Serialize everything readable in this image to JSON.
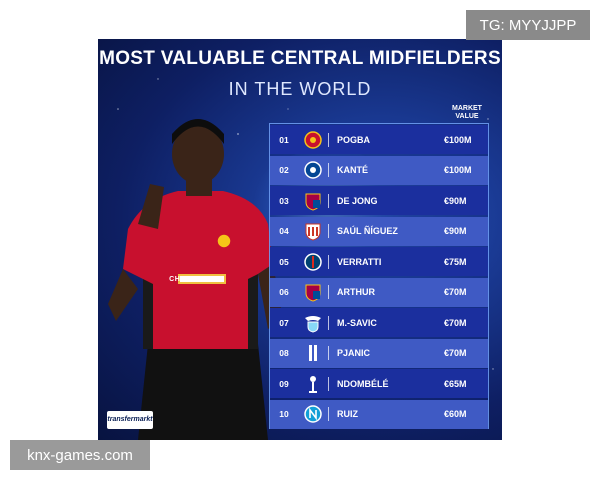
{
  "watermarks": {
    "top_right": "TG: MYYJJPP",
    "bottom_left": "knx-games.com"
  },
  "poster": {
    "title": "MOST VALUABLE CENTRAL MIDFIELDERS",
    "subtitle": "IN THE WORLD",
    "column_header": "MARKET VALUE",
    "logo_text": "transfermarkt",
    "player_shirt_text": "CHEVROLET",
    "rows": [
      {
        "rank": "01",
        "name": "POGBA",
        "value": "€100M",
        "club_icon": "manchester-united-crest-icon"
      },
      {
        "rank": "02",
        "name": "KANTÉ",
        "value": "€100M",
        "club_icon": "chelsea-crest-icon"
      },
      {
        "rank": "03",
        "name": "DE JONG",
        "value": "€90M",
        "club_icon": "barcelona-crest-icon"
      },
      {
        "rank": "04",
        "name": "SAÚL ÑÍGUEZ",
        "value": "€90M",
        "club_icon": "atletico-madrid-crest-icon"
      },
      {
        "rank": "05",
        "name": "VERRATTI",
        "value": "€75M",
        "club_icon": "psg-crest-icon"
      },
      {
        "rank": "06",
        "name": "ARTHUR",
        "value": "€70M",
        "club_icon": "barcelona-crest-icon"
      },
      {
        "rank": "07",
        "name": "M.-SAVIC",
        "value": "€70M",
        "club_icon": "lazio-crest-icon"
      },
      {
        "rank": "08",
        "name": "PJANIC",
        "value": "€70M",
        "club_icon": "juventus-crest-icon"
      },
      {
        "rank": "09",
        "name": "NDOMBÉLÉ",
        "value": "€65M",
        "club_icon": "tottenham-crest-icon"
      },
      {
        "rank": "10",
        "name": "RUIZ",
        "value": "€60M",
        "club_icon": "napoli-crest-icon"
      }
    ],
    "colors": {
      "row_dark": "#1b2f9e",
      "row_light": "#3f5ac4",
      "accent_red": "#c8102e"
    }
  }
}
